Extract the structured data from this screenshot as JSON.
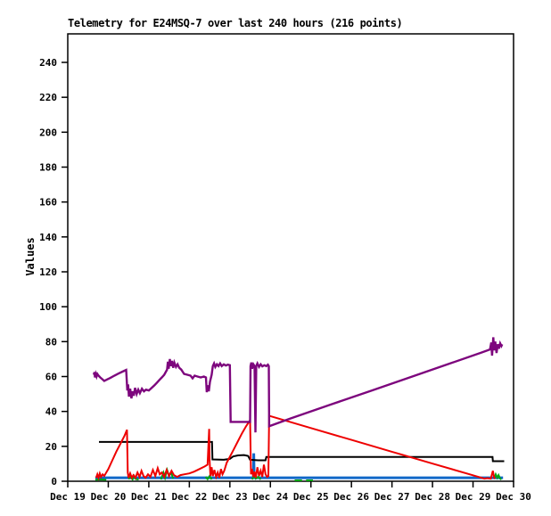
{
  "chart_data": {
    "type": "line",
    "title": "Telemetry for E24MSQ-7 over last 240 hours (216 points)",
    "xlabel": "",
    "ylabel": "Values",
    "ylim": [
      0,
      240
    ],
    "xlim": [
      0,
      11
    ],
    "x_unit": "days since Dec 19",
    "grid": false,
    "legend": "none",
    "y_ticks": [
      0,
      20,
      40,
      60,
      80,
      100,
      120,
      140,
      160,
      180,
      200,
      220,
      240
    ],
    "x_tick_labels": [
      "Dec 19",
      "Dec 20",
      "Dec 21",
      "Dec 22",
      "Dec 23",
      "Dec 24",
      "Dec 25",
      "Dec 26",
      "Dec 27",
      "Dec 28",
      "Dec 29",
      "Dec 30"
    ],
    "series": [
      {
        "name": "blue-series",
        "color": "#1068C8",
        "points": [
          [
            0.68,
            2
          ],
          [
            2.0,
            2
          ],
          [
            3.5,
            2
          ],
          [
            4.58,
            2
          ],
          [
            4.59,
            16
          ],
          [
            4.6,
            2
          ],
          [
            6.0,
            2
          ],
          [
            8.0,
            2
          ],
          [
            10.0,
            2
          ],
          [
            10.74,
            2
          ]
        ]
      },
      {
        "name": "green-series",
        "color": "#00A513",
        "segments": [
          [
            [
              0.68,
              0.8
            ],
            [
              0.8,
              1.0
            ],
            [
              0.95,
              0.8
            ]
          ],
          [
            [
              1.5,
              1.2
            ],
            [
              1.55,
              2.5
            ],
            [
              1.6,
              1.0
            ],
            [
              1.64,
              3.0
            ],
            [
              1.68,
              1.2
            ],
            [
              1.75,
              1.0
            ]
          ],
          [
            [
              2.3,
              1.0
            ],
            [
              2.36,
              5.0
            ],
            [
              2.4,
              2.0
            ],
            [
              2.45,
              6.5
            ],
            [
              2.5,
              3.0
            ],
            [
              2.55,
              5.0
            ],
            [
              2.6,
              1.5
            ]
          ],
          [
            [
              3.4,
              2.5
            ],
            [
              3.45,
              1.2
            ],
            [
              3.5,
              3.0
            ],
            [
              3.55,
              1.0
            ]
          ],
          [
            [
              4.55,
              1.0
            ],
            [
              4.6,
              3.5
            ],
            [
              4.64,
              1.5
            ],
            [
              4.7,
              2.5
            ],
            [
              4.76,
              1.0
            ]
          ],
          [
            [
              5.6,
              0.5
            ],
            [
              5.78,
              0.5
            ]
          ],
          [
            [
              5.88,
              0.5
            ],
            [
              6.05,
              0.5
            ]
          ],
          [
            [
              10.52,
              1.5
            ],
            [
              10.56,
              4.0
            ],
            [
              10.6,
              2.0
            ],
            [
              10.63,
              3.5
            ],
            [
              10.67,
              1.5
            ],
            [
              10.7,
              1.0
            ]
          ]
        ]
      },
      {
        "name": "black-series",
        "color": "#000000",
        "points": [
          [
            0.77,
            22.5
          ],
          [
            2.0,
            22.5
          ],
          [
            3.56,
            22.5
          ],
          [
            3.57,
            12.5
          ],
          [
            3.85,
            12.3
          ],
          [
            4.0,
            12.8
          ],
          [
            4.08,
            14.2
          ],
          [
            4.2,
            14.8
          ],
          [
            4.35,
            15.0
          ],
          [
            4.45,
            14.5
          ],
          [
            4.5,
            12.3
          ],
          [
            4.7,
            12.0
          ],
          [
            4.88,
            12.0
          ],
          [
            4.9,
            13.9
          ],
          [
            6.0,
            13.9
          ],
          [
            8.0,
            13.9
          ],
          [
            10.48,
            13.9
          ],
          [
            10.49,
            11.5
          ],
          [
            10.77,
            11.5
          ]
        ]
      },
      {
        "name": "red-series",
        "color": "#EE0000",
        "points": [
          [
            0.7,
            2
          ],
          [
            0.73,
            4
          ],
          [
            0.76,
            2
          ],
          [
            0.79,
            4.5
          ],
          [
            0.82,
            2.5
          ],
          [
            0.86,
            4
          ],
          [
            0.9,
            3
          ],
          [
            1.0,
            7
          ],
          [
            1.1,
            12
          ],
          [
            1.2,
            17
          ],
          [
            1.3,
            21.5
          ],
          [
            1.4,
            26
          ],
          [
            1.46,
            29.5
          ],
          [
            1.48,
            5
          ],
          [
            1.5,
            2
          ],
          [
            1.54,
            4.5
          ],
          [
            1.58,
            2
          ],
          [
            1.62,
            3.5
          ],
          [
            1.67,
            2
          ],
          [
            1.72,
            5
          ],
          [
            1.77,
            2.5
          ],
          [
            1.82,
            6
          ],
          [
            1.87,
            3
          ],
          [
            1.92,
            2
          ],
          [
            1.98,
            4
          ],
          [
            2.04,
            2.5
          ],
          [
            2.1,
            6.5
          ],
          [
            2.16,
            3
          ],
          [
            2.22,
            7.5
          ],
          [
            2.27,
            4
          ],
          [
            2.32,
            5
          ],
          [
            2.38,
            2.5
          ],
          [
            2.44,
            6.5
          ],
          [
            2.5,
            3
          ],
          [
            2.56,
            6
          ],
          [
            2.62,
            3.5
          ],
          [
            2.7,
            2.5
          ],
          [
            2.78,
            3.5
          ],
          [
            2.88,
            4
          ],
          [
            3.0,
            4.5
          ],
          [
            3.12,
            5.5
          ],
          [
            3.25,
            7
          ],
          [
            3.38,
            8.5
          ],
          [
            3.45,
            9.5
          ],
          [
            3.49,
            30
          ],
          [
            3.5,
            12
          ],
          [
            3.52,
            3
          ],
          [
            3.55,
            8
          ],
          [
            3.58,
            3
          ],
          [
            3.62,
            6.5
          ],
          [
            3.66,
            2.5
          ],
          [
            3.7,
            5
          ],
          [
            3.74,
            2
          ],
          [
            3.78,
            7
          ],
          [
            3.82,
            4
          ],
          [
            3.86,
            6
          ],
          [
            3.92,
            10.5
          ],
          [
            4.0,
            14
          ],
          [
            4.1,
            18.5
          ],
          [
            4.2,
            23
          ],
          [
            4.3,
            27.5
          ],
          [
            4.4,
            31.5
          ],
          [
            4.5,
            35
          ],
          [
            4.52,
            4
          ],
          [
            4.55,
            7
          ],
          [
            4.58,
            2.5
          ],
          [
            4.61,
            5.5
          ],
          [
            4.64,
            2
          ],
          [
            4.68,
            8
          ],
          [
            4.72,
            3
          ],
          [
            4.76,
            6
          ],
          [
            4.8,
            2.5
          ],
          [
            4.84,
            9.5
          ],
          [
            4.88,
            4
          ],
          [
            4.92,
            2.5
          ],
          [
            4.95,
            3
          ],
          [
            4.97,
            37.5
          ],
          [
            6.0,
            30.5
          ],
          [
            7.0,
            23.7
          ],
          [
            8.0,
            16.9
          ],
          [
            9.0,
            10.1
          ],
          [
            10.0,
            3.4
          ],
          [
            10.28,
            1.5
          ],
          [
            10.35,
            1.8
          ],
          [
            10.44,
            1.5
          ],
          [
            10.49,
            6
          ],
          [
            10.52,
            2
          ],
          [
            10.55,
            1.5
          ]
        ]
      },
      {
        "name": "purple-series",
        "color": "#7D067D",
        "points": [
          [
            0.64,
            61
          ],
          [
            0.66,
            62.5
          ],
          [
            0.67,
            59.5
          ],
          [
            0.69,
            61.5
          ],
          [
            0.71,
            60
          ],
          [
            0.73,
            61.5
          ],
          [
            0.76,
            60.5
          ],
          [
            0.8,
            59.5
          ],
          [
            0.85,
            58.5
          ],
          [
            0.9,
            57.5
          ],
          [
            0.97,
            58.3
          ],
          [
            1.05,
            59.2
          ],
          [
            1.15,
            60.5
          ],
          [
            1.25,
            61.7
          ],
          [
            1.35,
            62.8
          ],
          [
            1.44,
            63.8
          ],
          [
            1.47,
            52
          ],
          [
            1.49,
            55.5
          ],
          [
            1.51,
            48.5
          ],
          [
            1.54,
            53
          ],
          [
            1.57,
            47.5
          ],
          [
            1.6,
            51.5
          ],
          [
            1.63,
            49
          ],
          [
            1.66,
            53.5
          ],
          [
            1.7,
            50
          ],
          [
            1.74,
            52.5
          ],
          [
            1.78,
            50.5
          ],
          [
            1.83,
            53
          ],
          [
            1.88,
            51.5
          ],
          [
            1.93,
            52.5
          ],
          [
            2.0,
            52
          ],
          [
            2.07,
            53.5
          ],
          [
            2.14,
            55
          ],
          [
            2.2,
            56.5
          ],
          [
            2.26,
            58
          ],
          [
            2.32,
            59.5
          ],
          [
            2.38,
            61
          ],
          [
            2.45,
            64
          ],
          [
            2.47,
            68.5
          ],
          [
            2.49,
            64.5
          ],
          [
            2.52,
            70
          ],
          [
            2.54,
            66
          ],
          [
            2.57,
            69
          ],
          [
            2.6,
            65
          ],
          [
            2.63,
            68
          ],
          [
            2.67,
            65.5
          ],
          [
            2.71,
            67
          ],
          [
            2.75,
            65
          ],
          [
            2.8,
            64
          ],
          [
            2.87,
            61.5
          ],
          [
            2.95,
            61
          ],
          [
            3.03,
            60.5
          ],
          [
            3.08,
            59
          ],
          [
            3.13,
            60.5
          ],
          [
            3.2,
            60
          ],
          [
            3.28,
            59.5
          ],
          [
            3.36,
            60
          ],
          [
            3.41,
            59.5
          ],
          [
            3.43,
            51
          ],
          [
            3.46,
            55
          ],
          [
            3.48,
            51.5
          ],
          [
            3.51,
            57
          ],
          [
            3.55,
            61
          ],
          [
            3.58,
            66
          ],
          [
            3.61,
            67.5
          ],
          [
            3.64,
            65.5
          ],
          [
            3.68,
            67
          ],
          [
            3.72,
            66
          ],
          [
            3.76,
            67.5
          ],
          [
            3.8,
            66
          ],
          [
            3.85,
            67
          ],
          [
            3.9,
            66.3
          ],
          [
            3.95,
            66.8
          ],
          [
            4.0,
            66.5
          ],
          [
            4.02,
            34
          ],
          [
            4.15,
            34
          ],
          [
            4.3,
            34
          ],
          [
            4.5,
            34
          ],
          [
            4.51,
            66
          ],
          [
            4.53,
            68
          ],
          [
            4.55,
            64.5
          ],
          [
            4.58,
            67
          ],
          [
            4.61,
            66
          ],
          [
            4.63,
            28
          ],
          [
            4.65,
            66
          ],
          [
            4.68,
            67.5
          ],
          [
            4.72,
            65.5
          ],
          [
            4.76,
            67
          ],
          [
            4.8,
            65.8
          ],
          [
            4.85,
            66.5
          ],
          [
            4.9,
            66
          ],
          [
            4.94,
            66.8
          ],
          [
            4.96,
            66
          ],
          [
            4.97,
            31.5
          ],
          [
            5.5,
            36
          ],
          [
            6.5,
            44
          ],
          [
            7.5,
            52
          ],
          [
            8.5,
            60
          ],
          [
            9.5,
            68
          ],
          [
            10.2,
            73.7
          ],
          [
            10.42,
            75.5
          ],
          [
            10.45,
            79.5
          ],
          [
            10.47,
            72
          ],
          [
            10.5,
            82.5
          ],
          [
            10.52,
            75
          ],
          [
            10.55,
            80
          ],
          [
            10.58,
            73.5
          ],
          [
            10.61,
            78.5
          ],
          [
            10.64,
            76
          ],
          [
            10.67,
            79
          ],
          [
            10.7,
            77.5
          ],
          [
            10.72,
            78.5
          ]
        ]
      }
    ]
  }
}
